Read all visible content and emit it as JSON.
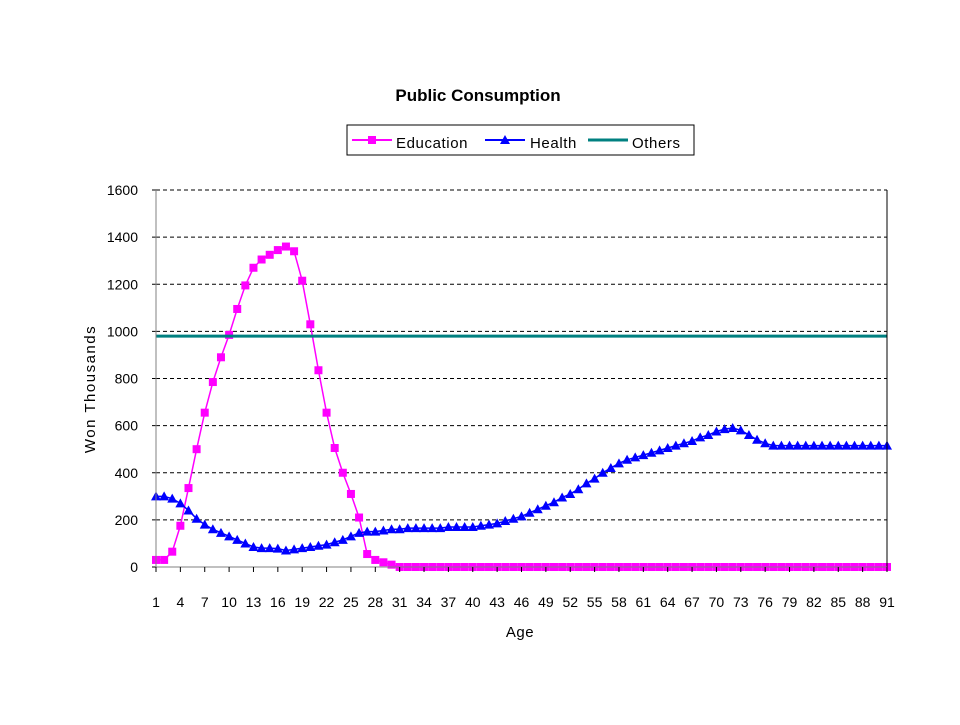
{
  "chart_data": {
    "type": "line",
    "title": "Public Consumption",
    "xlabel": "Age",
    "ylabel": "Won Thousands",
    "ylim": [
      0,
      1600
    ],
    "yticks": [
      0,
      200,
      400,
      600,
      800,
      1000,
      1200,
      1400,
      1600
    ],
    "x": [
      1,
      2,
      3,
      4,
      5,
      6,
      7,
      8,
      9,
      10,
      11,
      12,
      13,
      14,
      15,
      16,
      17,
      18,
      19,
      20,
      21,
      22,
      23,
      24,
      25,
      26,
      27,
      28,
      29,
      30,
      31,
      32,
      33,
      34,
      35,
      36,
      37,
      38,
      39,
      40,
      41,
      42,
      43,
      44,
      45,
      46,
      47,
      48,
      49,
      50,
      51,
      52,
      53,
      54,
      55,
      56,
      57,
      58,
      59,
      60,
      61,
      62,
      63,
      64,
      65,
      66,
      67,
      68,
      69,
      70,
      71,
      72,
      73,
      74,
      75,
      76,
      77,
      78,
      79,
      80,
      81,
      82,
      83,
      84,
      85,
      86,
      87,
      88,
      89,
      90,
      91
    ],
    "xticks": [
      1,
      4,
      7,
      10,
      13,
      16,
      19,
      22,
      25,
      28,
      31,
      34,
      37,
      40,
      43,
      46,
      49,
      52,
      55,
      58,
      61,
      64,
      67,
      70,
      73,
      76,
      79,
      82,
      85,
      88,
      91
    ],
    "legend_position": "top",
    "grid": "horizontal dashed",
    "series": [
      {
        "name": "Education",
        "color": "#ff00ff",
        "marker": "square",
        "values": [
          30,
          30,
          65,
          175,
          335,
          500,
          655,
          785,
          890,
          985,
          1095,
          1195,
          1270,
          1305,
          1325,
          1345,
          1360,
          1340,
          1215,
          1030,
          835,
          655,
          505,
          400,
          310,
          210,
          55,
          30,
          20,
          10,
          0,
          0,
          0,
          0,
          0,
          0,
          0,
          0,
          0,
          0,
          0,
          0,
          0,
          0,
          0,
          0,
          0,
          0,
          0,
          0,
          0,
          0,
          0,
          0,
          0,
          0,
          0,
          0,
          0,
          0,
          0,
          0,
          0,
          0,
          0,
          0,
          0,
          0,
          0,
          0,
          0,
          0,
          0,
          0,
          0,
          0,
          0,
          0,
          0,
          0,
          0,
          0,
          0,
          0,
          0,
          0,
          0,
          0,
          0,
          0,
          0
        ]
      },
      {
        "name": "Health",
        "color": "#0000ff",
        "marker": "triangle",
        "values": [
          300,
          300,
          290,
          270,
          240,
          205,
          180,
          160,
          145,
          130,
          115,
          100,
          85,
          80,
          80,
          78,
          70,
          75,
          80,
          85,
          90,
          95,
          105,
          115,
          130,
          145,
          150,
          150,
          155,
          160,
          160,
          165,
          165,
          165,
          165,
          165,
          170,
          170,
          170,
          170,
          175,
          180,
          185,
          195,
          205,
          215,
          230,
          245,
          260,
          275,
          295,
          310,
          330,
          355,
          375,
          400,
          420,
          440,
          455,
          465,
          475,
          485,
          495,
          505,
          515,
          525,
          535,
          550,
          560,
          575,
          585,
          590,
          580,
          560,
          540,
          525,
          515,
          515,
          515,
          515,
          515,
          515,
          515,
          515,
          515,
          515,
          515,
          515,
          515,
          515,
          515
        ]
      },
      {
        "name": "Others",
        "color": "#008080",
        "marker": "none",
        "values": [
          980,
          980,
          980,
          980,
          980,
          980,
          980,
          980,
          980,
          980,
          980,
          980,
          980,
          980,
          980,
          980,
          980,
          980,
          980,
          980,
          980,
          980,
          980,
          980,
          980,
          980,
          980,
          980,
          980,
          980,
          980,
          980,
          980,
          980,
          980,
          980,
          980,
          980,
          980,
          980,
          980,
          980,
          980,
          980,
          980,
          980,
          980,
          980,
          980,
          980,
          980,
          980,
          980,
          980,
          980,
          980,
          980,
          980,
          980,
          980,
          980,
          980,
          980,
          980,
          980,
          980,
          980,
          980,
          980,
          980,
          980,
          980,
          980,
          980,
          980,
          980,
          980,
          980,
          980,
          980,
          980,
          980,
          980,
          980,
          980,
          980,
          980,
          980,
          980,
          980,
          980
        ]
      }
    ]
  }
}
